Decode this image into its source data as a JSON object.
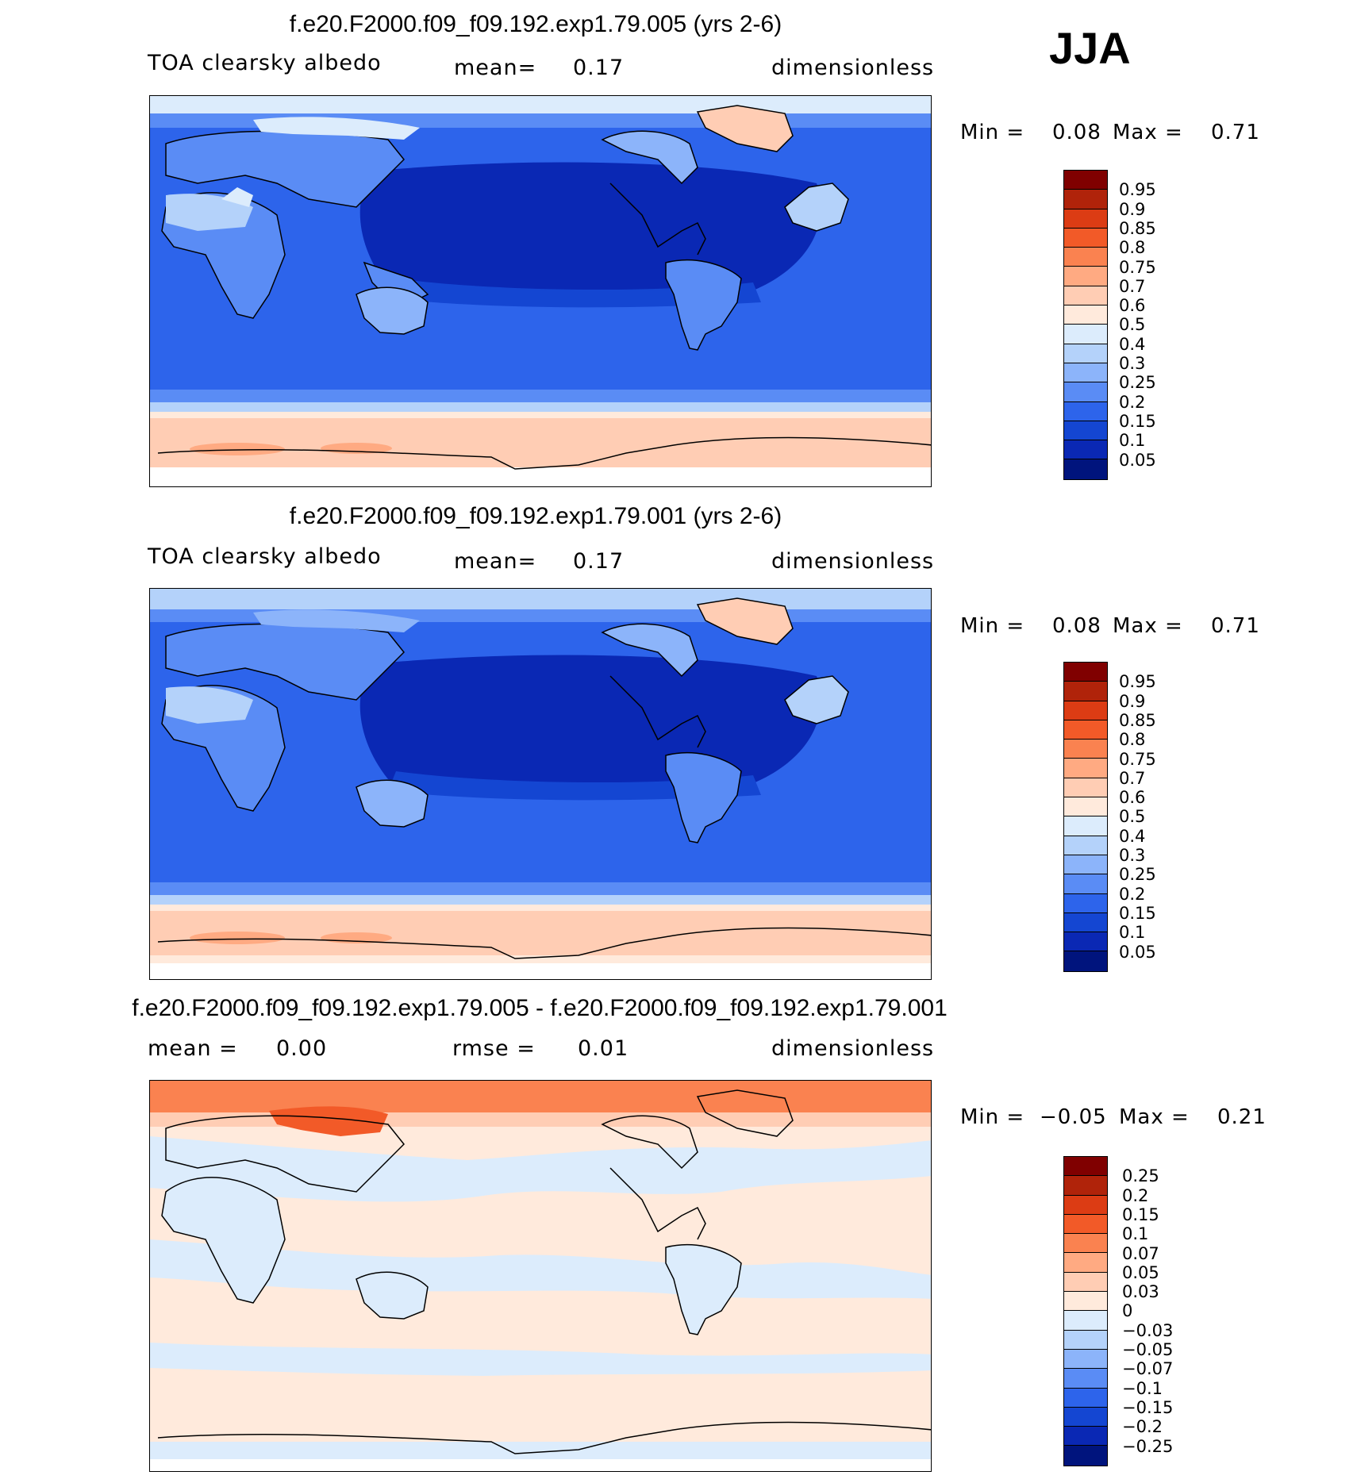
{
  "season": "JJA",
  "panels": [
    {
      "title": "f.e20.F2000.f09_f09.192.exp1.79.005 (yrs 2-6)",
      "left_label": "TOA clearsky albedo",
      "mid_label": "mean=",
      "mid_value": "0.17",
      "units": "dimensionless",
      "min_label": "Min =",
      "min_value": "0.08",
      "max_label": "Max =",
      "max_value": "0.71"
    },
    {
      "title": "f.e20.F2000.f09_f09.192.exp1.79.001 (yrs 2-6)",
      "left_label": "TOA clearsky albedo",
      "mid_label": "mean=",
      "mid_value": "0.17",
      "units": "dimensionless",
      "min_label": "Min =",
      "min_value": "0.08",
      "max_label": "Max =",
      "max_value": "0.71"
    },
    {
      "title": "f.e20.F2000.f09_f09.192.exp1.79.005 - f.e20.F2000.f09_f09.192.exp1.79.001",
      "left_label": "mean =",
      "left_value": "0.00",
      "mid_label": "rmse =",
      "mid_value": "0.01",
      "units": "dimensionless",
      "min_label": "Min =",
      "min_value": "−0.05",
      "max_label": "Max =",
      "max_value": "0.21"
    }
  ],
  "colorbars": {
    "abs": {
      "levels": [
        "0.95",
        "0.9",
        "0.85",
        "0.8",
        "0.75",
        "0.7",
        "0.6",
        "0.5",
        "0.4",
        "0.3",
        "0.25",
        "0.2",
        "0.15",
        "0.1",
        "0.05"
      ],
      "colors": [
        "#800000",
        "#b0230a",
        "#dc3c14",
        "#f25a28",
        "#fa8250",
        "#ffaa82",
        "#ffcdb4",
        "#ffeadc",
        "#dcecfc",
        "#b4d2fa",
        "#8cb4fa",
        "#5a8cf5",
        "#2d64eb",
        "#1446d2",
        "#0a28b4",
        "#00147d"
      ]
    },
    "diff": {
      "levels": [
        "0.25",
        "0.2",
        "0.15",
        "0.1",
        "0.07",
        "0.05",
        "0.03",
        "0",
        "−0.03",
        "−0.05",
        "−0.07",
        "−0.1",
        "−0.15",
        "−0.2",
        "−0.25"
      ],
      "colors": [
        "#800000",
        "#b0230a",
        "#dc3c14",
        "#f25a28",
        "#fa8250",
        "#ffaa82",
        "#ffcdb4",
        "#ffeadc",
        "#dcecfc",
        "#b4d2fa",
        "#8cb4fa",
        "#5a8cf5",
        "#2d64eb",
        "#1446d2",
        "#0a28b4",
        "#00147d"
      ]
    }
  }
}
